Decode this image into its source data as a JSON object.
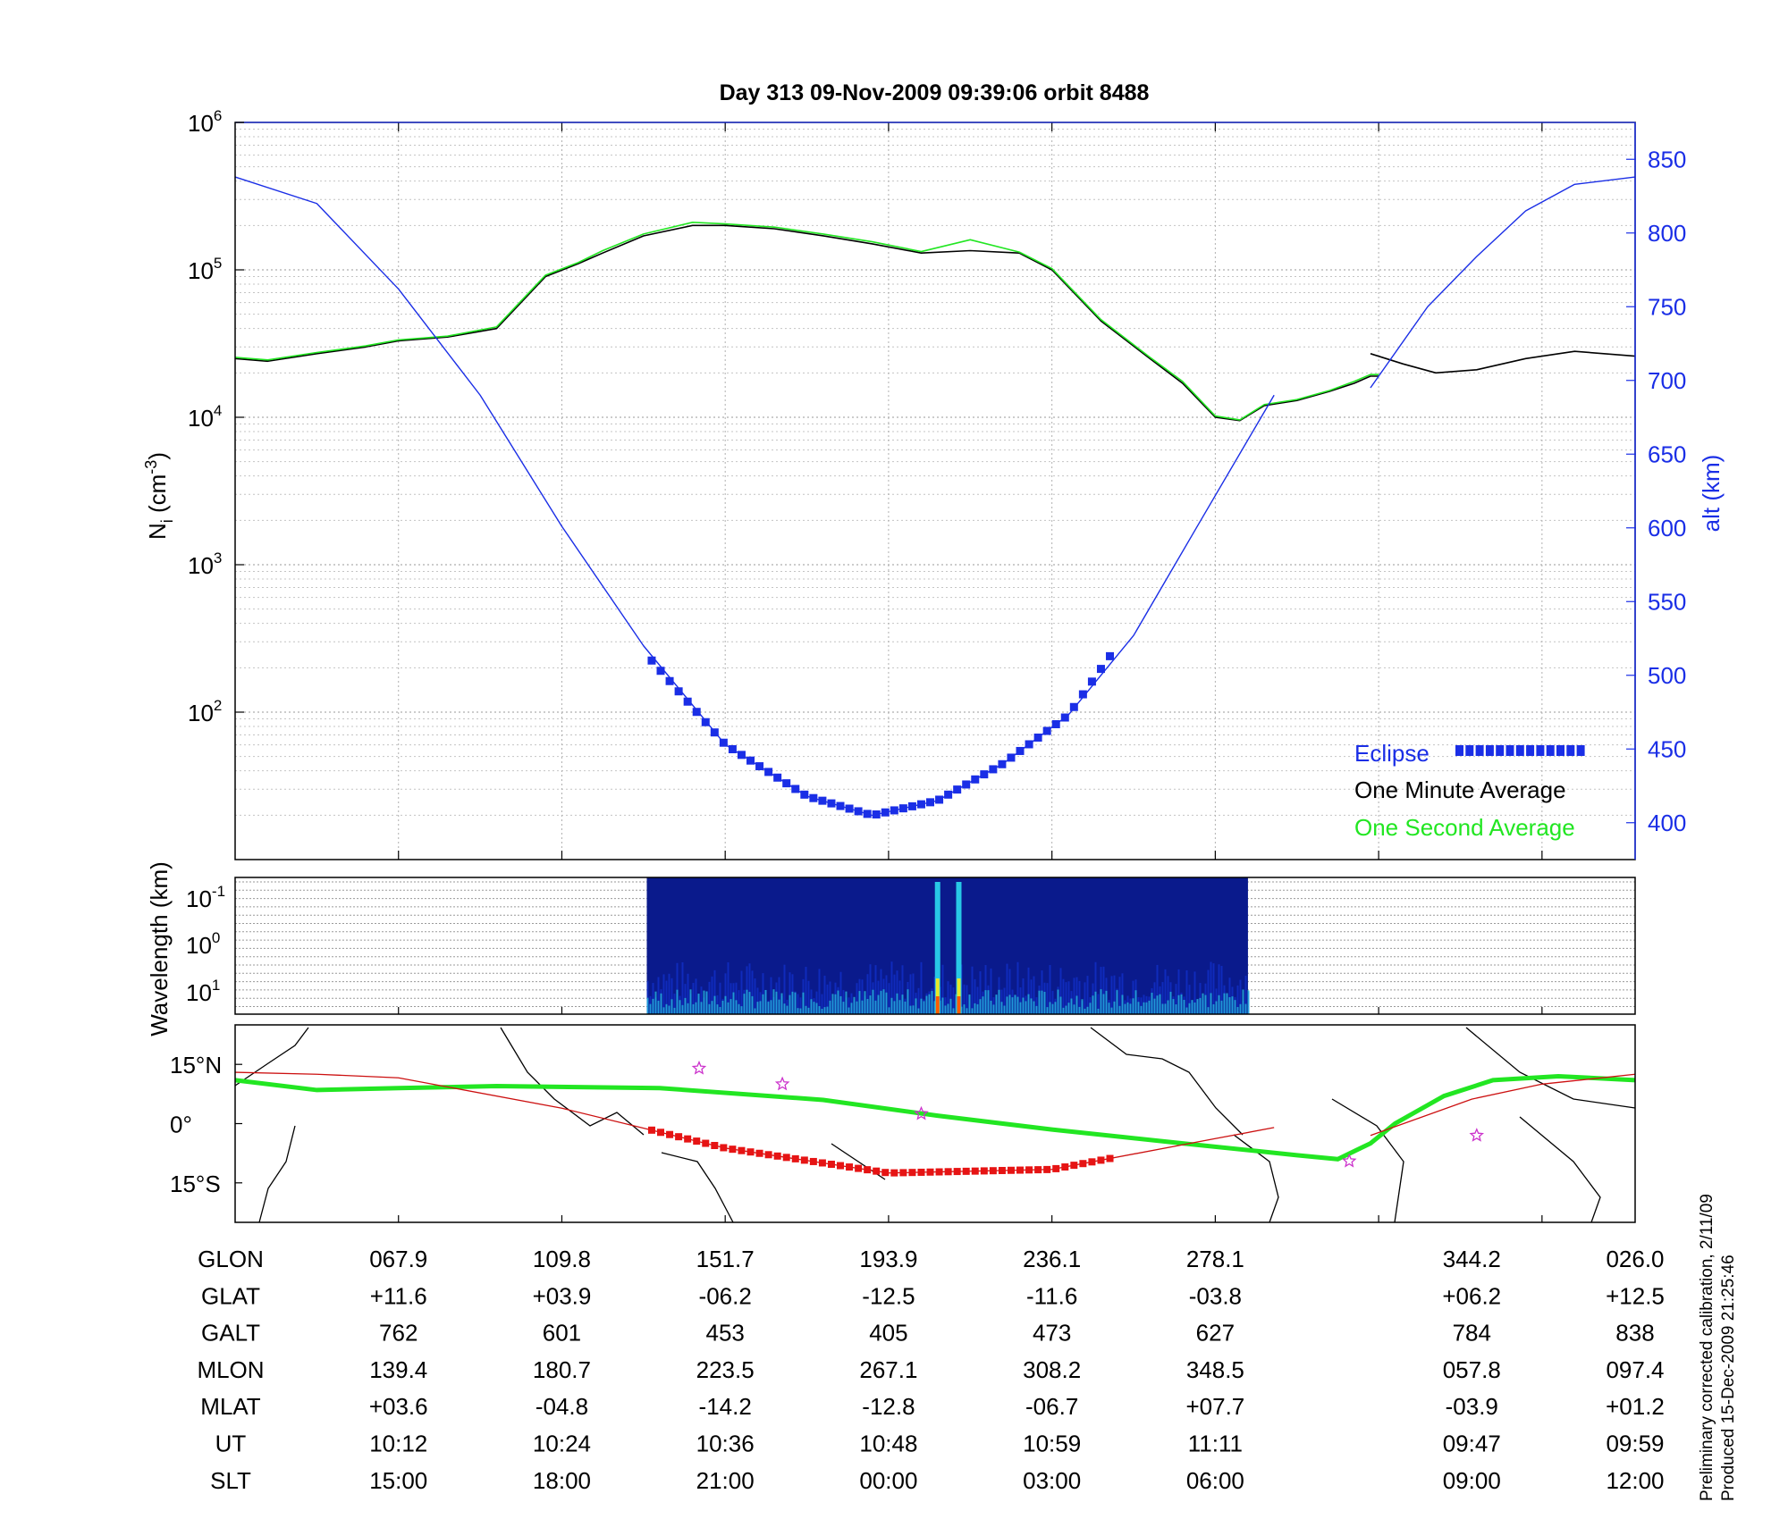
{
  "chart_data": [
    {
      "type": "line",
      "title": "Day 313  09-Nov-2009 09:39:06   orbit 8488",
      "ylabel_main": "N",
      "ylabel_sub": "i",
      "ylabel_unit_open": " (cm",
      "ylabel_unit_exp": "-3",
      "ylabel_unit_close": ")",
      "y_scale": "log",
      "ylim": [
        10,
        1000000
      ],
      "y_ticks": [
        {
          "value": 100,
          "base": "10",
          "exp": "2"
        },
        {
          "value": 1000,
          "base": "10",
          "exp": "3"
        },
        {
          "value": 10000,
          "base": "10",
          "exp": "4"
        },
        {
          "value": 100000,
          "base": "10",
          "exp": "5"
        },
        {
          "value": 1000000,
          "base": "10",
          "exp": "6"
        }
      ],
      "y2label": "alt (km)",
      "y2lim": [
        375,
        875
      ],
      "y2_ticks": [
        "400",
        "450",
        "500",
        "550",
        "600",
        "650",
        "700",
        "750",
        "800",
        "850"
      ],
      "xlim": [
        0,
        8.57
      ],
      "grid": true,
      "legend_position": "bottom-right",
      "legend": [
        {
          "label": "Eclipse",
          "color": "#1a2ee6"
        },
        {
          "label": "One Minute Average",
          "color": "#000000"
        },
        {
          "label": "One Second Average",
          "color": "#22e622"
        }
      ],
      "series": [
        {
          "name": "One Minute Average",
          "color": "#000000",
          "x": [
            0,
            0.2,
            0.5,
            0.8,
            1.0,
            1.3,
            1.6,
            1.9,
            2.1,
            2.25,
            2.5,
            2.8,
            3.0,
            3.3,
            3.6,
            3.9,
            4.2,
            4.5,
            4.8,
            5.0,
            5.3,
            5.6,
            5.8,
            6.0,
            6.15,
            6.3,
            6.5,
            6.7,
            6.85,
            6.95,
            7.0
          ],
          "y": [
            25000,
            24000,
            27000,
            30000,
            33000,
            35000,
            40000,
            90000,
            110000,
            130000,
            170000,
            200000,
            200000,
            190000,
            170000,
            150000,
            130000,
            135000,
            130000,
            100000,
            45000,
            25000,
            17000,
            10000,
            9500,
            12000,
            13000,
            15000,
            17000,
            19000,
            19000
          ]
        },
        {
          "name": "One Minute Average (after gap)",
          "color": "#000000",
          "x": [
            6.95,
            7.15,
            7.35,
            7.6,
            7.9,
            8.2,
            8.57
          ],
          "y": [
            27000,
            23000,
            20000,
            21000,
            25000,
            28000,
            26000
          ]
        },
        {
          "name": "One Second Average",
          "color": "#22e622",
          "x": [
            0,
            0.2,
            0.5,
            0.8,
            1.0,
            1.3,
            1.6,
            1.9,
            2.1,
            2.25,
            2.5,
            2.8,
            3.0,
            3.3,
            3.6,
            3.9,
            4.2,
            4.5,
            4.8,
            5.0,
            5.3,
            5.6,
            5.8,
            6.0,
            6.15,
            6.3,
            6.5,
            6.7,
            6.85,
            6.95,
            7.0
          ],
          "y": [
            25500,
            24500,
            27500,
            30500,
            33500,
            35500,
            41000,
            92000,
            112000,
            135000,
            175000,
            210000,
            205000,
            195000,
            175000,
            155000,
            133000,
            160000,
            132000,
            102000,
            46000,
            25500,
            17500,
            10200,
            9600,
            12200,
            13200,
            15200,
            17500,
            19500,
            19500
          ]
        },
        {
          "name": "Altitude",
          "color": "#1a2ee6",
          "axis": "alt",
          "x": [
            0,
            0.5,
            1.0,
            1.5,
            2.0,
            2.5,
            3.0,
            3.5,
            3.9,
            4.3,
            4.7,
            5.1,
            5.5,
            5.9,
            6.36
          ],
          "y": [
            838,
            820,
            762,
            690,
            601,
            520,
            453,
            418,
            405,
            415,
            440,
            473,
            527,
            603,
            690
          ]
        },
        {
          "name": "Altitude (after gap)",
          "color": "#1a2ee6",
          "axis": "alt",
          "x": [
            6.95,
            7.3,
            7.6,
            7.9,
            8.2,
            8.57
          ],
          "y": [
            695,
            750,
            784,
            815,
            833,
            838
          ]
        },
        {
          "name": "Eclipse",
          "color": "#1a2ee6",
          "axis": "alt",
          "x": [
            2.55,
            3.0,
            3.5,
            3.9,
            4.3,
            4.7,
            5.1,
            5.4
          ],
          "y": [
            510,
            453,
            418,
            405,
            415,
            440,
            473,
            520
          ]
        }
      ],
      "ylabel": "N"
    },
    {
      "type": "heatmap",
      "ylabel": "Wavelength (km)",
      "y_scale": "log",
      "y_ticks": [
        {
          "base": "10",
          "exp": "-1"
        },
        {
          "base": "10",
          "exp": "0"
        },
        {
          "base": "10",
          "exp": "1"
        }
      ],
      "x_extent": [
        2.52,
        6.2
      ],
      "colors": [
        "#0a1a8c",
        "#1230c8",
        "#1e6ae0",
        "#28c8e6",
        "#e8e828",
        "#ff5a00"
      ]
    },
    {
      "type": "map",
      "y_ticks": [
        "15°N",
        "0°",
        "15°S"
      ],
      "lat_range": [
        -25,
        25
      ],
      "track_color": "#cc1010",
      "magnetic_equator_color": "#22e622",
      "marker_color": "#cc33cc",
      "eclipse_color": "#e61414"
    }
  ],
  "orbit_table": {
    "rows": [
      {
        "label": "GLON",
        "values": [
          "067.9",
          "109.8",
          "151.7",
          "193.9",
          "236.1",
          "278.1",
          "344.2",
          "026.0"
        ]
      },
      {
        "label": "GLAT",
        "values": [
          "+11.6",
          "+03.9",
          "-06.2",
          "-12.5",
          "-11.6",
          "-03.8",
          "+06.2",
          "+12.5"
        ]
      },
      {
        "label": "GALT",
        "values": [
          "762",
          "601",
          "453",
          "405",
          "473",
          "627",
          "784",
          "838"
        ]
      },
      {
        "label": "MLON",
        "values": [
          "139.4",
          "180.7",
          "223.5",
          "267.1",
          "308.2",
          "348.5",
          "057.8",
          "097.4"
        ]
      },
      {
        "label": "MLAT",
        "values": [
          "+03.6",
          "-04.8",
          "-14.2",
          "-12.8",
          "-06.7",
          "+07.7",
          "-03.9",
          "+01.2"
        ]
      },
      {
        "label": "UT",
        "values": [
          "10:12",
          "10:24",
          "10:36",
          "10:48",
          "10:59",
          "11:11",
          "09:47",
          "09:59"
        ]
      },
      {
        "label": "SLT",
        "values": [
          "15:00",
          "18:00",
          "21:00",
          "00:00",
          "03:00",
          "06:00",
          "09:00",
          "12:00"
        ]
      }
    ],
    "column_positions": [
      1,
      2,
      3,
      4,
      5,
      6,
      7.57,
      8.57
    ]
  },
  "footer": {
    "line1": "Preliminary corrected calibration, 2/11/09",
    "line2": "Produced 15-Dec-2009 21:25:46"
  }
}
